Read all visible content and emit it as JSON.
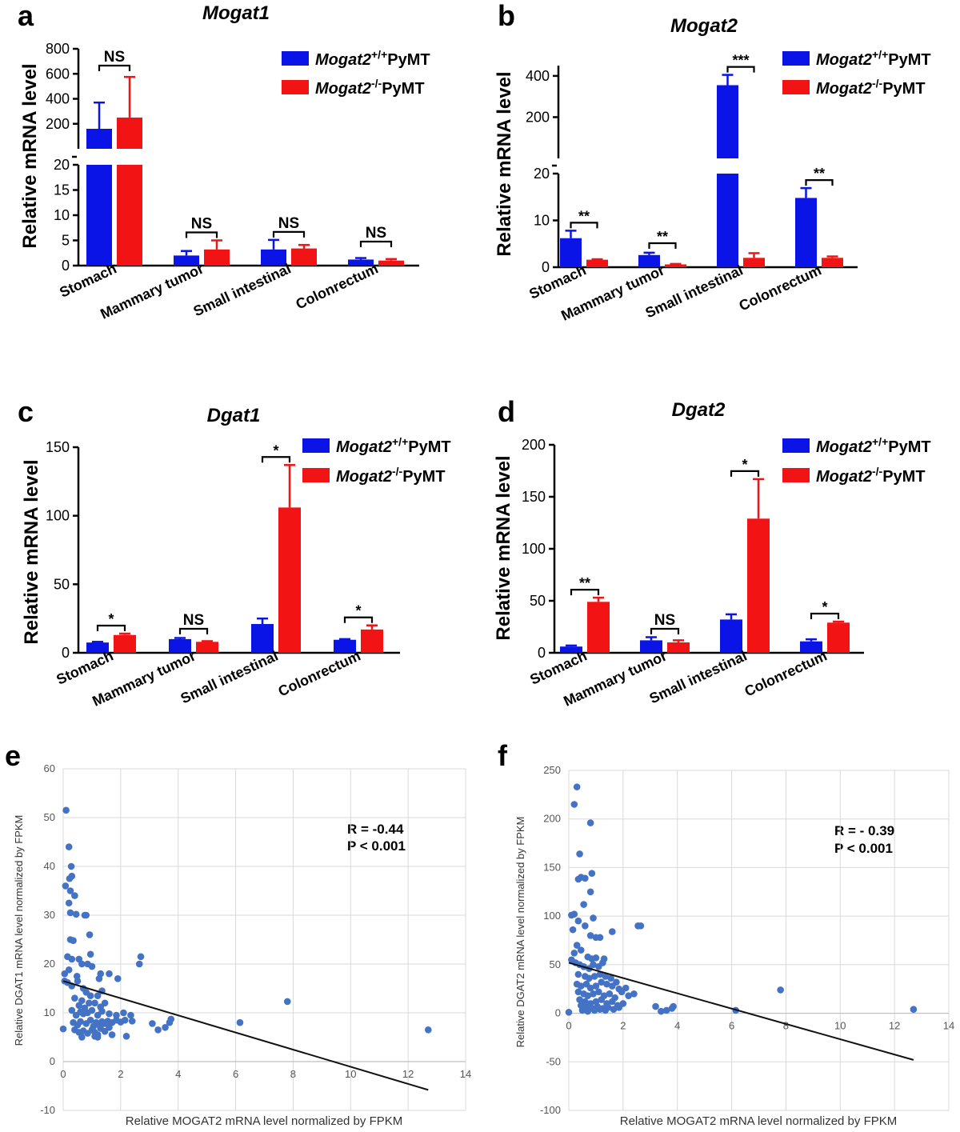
{
  "panels": {
    "a": "a",
    "b": "b",
    "c": "c",
    "d": "d",
    "e": "e",
    "f": "f"
  },
  "legend": {
    "wt_gene": "Mogat2",
    "wt_sup": "+/+",
    "wt_suffix": "PyMT",
    "ko_gene": "Mogat2",
    "ko_sup": "-/-",
    "ko_suffix": "PyMT"
  },
  "colors": {
    "wt": "#0a14e6",
    "ko": "#f21414",
    "scatter": "#4472c4",
    "grid": "#d9d9d9",
    "trend": "#111111"
  },
  "chart_data": [
    {
      "panel": "a",
      "type": "bar",
      "title": "Mogat1",
      "ylabel": "Relative mRNA level",
      "categories": [
        "Stomach",
        "Mammary tumor",
        "Small intestinal",
        "Colonrectum"
      ],
      "series": [
        {
          "name": "Mogat2+/+PyMT",
          "values": [
            160,
            2,
            3.2,
            1.2
          ],
          "errors": [
            210,
            0.9,
            1.9,
            0.3
          ]
        },
        {
          "name": "Mogat2-/-PyMT",
          "values": [
            250,
            3.2,
            3.4,
            1.0
          ],
          "errors": [
            325,
            1.8,
            0.7,
            0.3
          ]
        }
      ],
      "broken_axis": {
        "lower": [
          0,
          20
        ],
        "upper": [
          0,
          800
        ],
        "lower_ticks": [
          0,
          5,
          10,
          15,
          20
        ],
        "upper_ticks": [
          200,
          400,
          600,
          800
        ]
      },
      "significance": [
        "NS",
        "NS",
        "NS",
        "NS"
      ]
    },
    {
      "panel": "b",
      "type": "bar",
      "title": "Mogat2",
      "ylabel": "Relative mRNA level",
      "categories": [
        "Stomach",
        "Mammary tumor",
        "Small intestinal",
        "Colonrectum"
      ],
      "series": [
        {
          "name": "Mogat2+/+PyMT",
          "values": [
            6.2,
            2.6,
            355,
            14.8
          ],
          "errors": [
            1.6,
            0.5,
            50,
            2.1
          ]
        },
        {
          "name": "Mogat2-/-PyMT",
          "values": [
            1.6,
            0.6,
            2.0,
            2.0
          ],
          "errors": [
            0.1,
            0.1,
            1.0,
            0.3
          ]
        }
      ],
      "broken_axis": {
        "lower": [
          0,
          20
        ],
        "upper": [
          0,
          450
        ],
        "lower_ticks": [
          0,
          10,
          20
        ],
        "upper_ticks": [
          200,
          400
        ]
      },
      "significance": [
        "**",
        "**",
        "***",
        "**"
      ]
    },
    {
      "panel": "c",
      "type": "bar",
      "title": "Dgat1",
      "ylabel": "Relative mRNA level",
      "categories": [
        "Stomach",
        "Mammary tumor",
        "Small intestinal",
        "Colonrectum"
      ],
      "series": [
        {
          "name": "Mogat2+/+PyMT",
          "values": [
            7.5,
            10,
            21,
            9.5
          ],
          "errors": [
            0.5,
            0.8,
            4,
            0.5
          ]
        },
        {
          "name": "Mogat2-/-PyMT",
          "values": [
            13,
            8,
            106,
            17
          ],
          "errors": [
            1,
            0.5,
            31,
            3
          ]
        }
      ],
      "ylim": [
        0,
        150
      ],
      "yticks": [
        0,
        50,
        100,
        150
      ],
      "significance": [
        "*",
        "NS",
        "*",
        "*"
      ]
    },
    {
      "panel": "d",
      "type": "bar",
      "title": "Dgat2",
      "ylabel": "Relative mRNA level",
      "categories": [
        "Stomach",
        "Mammary tumor",
        "Small intestinal",
        "Colonrectum"
      ],
      "series": [
        {
          "name": "Mogat2+/+PyMT",
          "values": [
            6,
            12,
            32,
            11
          ],
          "errors": [
            1,
            3,
            5,
            2
          ]
        },
        {
          "name": "Mogat2-/-PyMT",
          "values": [
            49,
            10,
            129,
            29
          ],
          "errors": [
            4,
            2,
            38,
            1
          ]
        }
      ],
      "ylim": [
        0,
        200
      ],
      "yticks": [
        0,
        50,
        100,
        150,
        200
      ],
      "significance": [
        "**",
        "NS",
        "*",
        "*"
      ]
    },
    {
      "panel": "e",
      "type": "scatter",
      "xlabel": "Relative MOGAT2 mRNA level normalized by FPKM",
      "ylabel": "Relative DGAT1 mRNA level normalized by FPKM",
      "xlim": [
        0,
        14
      ],
      "ylim": [
        -10,
        60
      ],
      "xticks": [
        0,
        2,
        4,
        6,
        8,
        10,
        12,
        14
      ],
      "yticks": [
        -10,
        0,
        10,
        20,
        30,
        40,
        50,
        60
      ],
      "annotation": [
        "R = -0.44",
        "P < 0.001"
      ],
      "trendline": [
        [
          0,
          16.5
        ],
        [
          12.7,
          -5.8
        ]
      ],
      "points": [
        [
          0.1,
          51.5
        ],
        [
          0.2,
          44
        ],
        [
          0.28,
          40
        ],
        [
          0.22,
          37.5
        ],
        [
          0.3,
          38
        ],
        [
          0.08,
          36
        ],
        [
          0.25,
          35
        ],
        [
          0.4,
          34
        ],
        [
          0.2,
          32.5
        ],
        [
          0.25,
          30.5
        ],
        [
          0.45,
          30.2
        ],
        [
          0.75,
          30
        ],
        [
          0.8,
          30
        ],
        [
          0.25,
          25
        ],
        [
          0.35,
          24.8
        ],
        [
          0.92,
          26
        ],
        [
          0.15,
          21.5
        ],
        [
          0.3,
          21
        ],
        [
          0.55,
          21
        ],
        [
          0.95,
          22
        ],
        [
          0.05,
          18
        ],
        [
          0.2,
          18.8
        ],
        [
          0.48,
          17.5
        ],
        [
          0.65,
          20
        ],
        [
          0.85,
          20
        ],
        [
          1.0,
          19.5
        ],
        [
          1.3,
          18
        ],
        [
          1.6,
          18
        ],
        [
          1.9,
          17
        ],
        [
          0.05,
          16.5
        ],
        [
          0.15,
          16.2
        ],
        [
          0.3,
          15.5
        ],
        [
          0.5,
          16.5
        ],
        [
          0.7,
          15
        ],
        [
          0.8,
          14.2
        ],
        [
          0.95,
          13.5
        ],
        [
          1.2,
          13.5
        ],
        [
          1.25,
          17
        ],
        [
          1.35,
          14.5
        ],
        [
          0.4,
          13
        ],
        [
          0.55,
          11.5
        ],
        [
          0.65,
          12.5
        ],
        [
          0.75,
          11
        ],
        [
          0.9,
          12
        ],
        [
          1.1,
          12
        ],
        [
          1.3,
          11.2
        ],
        [
          1.45,
          12
        ],
        [
          0.3,
          10.5
        ],
        [
          0.45,
          9.5
        ],
        [
          0.6,
          10.2
        ],
        [
          0.7,
          9.8
        ],
        [
          0.85,
          10
        ],
        [
          1.0,
          10.5
        ],
        [
          1.2,
          9.5
        ],
        [
          1.35,
          10.3
        ],
        [
          1.6,
          9.8
        ],
        [
          1.85,
          9.5
        ],
        [
          2.1,
          10
        ],
        [
          2.35,
          9.5
        ],
        [
          0.35,
          8
        ],
        [
          0.5,
          7.5
        ],
        [
          0.6,
          8.2
        ],
        [
          0.8,
          7.8
        ],
        [
          0.95,
          8.5
        ],
        [
          1.05,
          7.2
        ],
        [
          1.15,
          8
        ],
        [
          1.25,
          7.5
        ],
        [
          1.35,
          8.2
        ],
        [
          1.45,
          7.8
        ],
        [
          1.55,
          8.3
        ],
        [
          1.7,
          8
        ],
        [
          1.85,
          8.5
        ],
        [
          2.0,
          8.1
        ],
        [
          2.15,
          8.5
        ],
        [
          2.4,
          8.3
        ],
        [
          0.4,
          6.5
        ],
        [
          0.55,
          6
        ],
        [
          0.7,
          6.3
        ],
        [
          0.85,
          5.8
        ],
        [
          1.0,
          6.5
        ],
        [
          1.1,
          6
        ],
        [
          1.2,
          5.5
        ],
        [
          1.3,
          6.8
        ],
        [
          1.45,
          6.2
        ],
        [
          1.6,
          7
        ],
        [
          0.65,
          5
        ],
        [
          1.1,
          5.2
        ],
        [
          1.2,
          5
        ],
        [
          2.2,
          5.2
        ],
        [
          1.7,
          5.5
        ],
        [
          2.65,
          20
        ],
        [
          2.7,
          21.5
        ],
        [
          3.1,
          7.8
        ],
        [
          3.3,
          6.5
        ],
        [
          3.55,
          7
        ],
        [
          3.7,
          8
        ],
        [
          3.75,
          8.7
        ],
        [
          6.15,
          8
        ],
        [
          7.8,
          12.3
        ],
        [
          12.7,
          6.5
        ],
        [
          0.0,
          6.7
        ]
      ]
    },
    {
      "panel": "f",
      "type": "scatter",
      "xlabel": "Relative MOGAT2 mRNA level normalized by FPKM",
      "ylabel": "Relative DGAT2 mRNA level normalized by FPKM",
      "xlim": [
        0,
        14
      ],
      "ylim": [
        -100,
        250
      ],
      "xticks": [
        0,
        2,
        4,
        6,
        8,
        10,
        12,
        14
      ],
      "yticks": [
        -100,
        -50,
        0,
        50,
        100,
        150,
        200,
        250
      ],
      "annotation": [
        "R = - 0.39",
        "P < 0.001"
      ],
      "trendline": [
        [
          0,
          52
        ],
        [
          12.7,
          -48
        ]
      ],
      "points": [
        [
          0.3,
          233
        ],
        [
          0.2,
          215
        ],
        [
          0.8,
          196
        ],
        [
          0.4,
          164
        ],
        [
          0.45,
          140
        ],
        [
          0.35,
          138
        ],
        [
          0.6,
          139
        ],
        [
          0.85,
          144
        ],
        [
          0.8,
          125
        ],
        [
          0.55,
          112
        ],
        [
          0.2,
          102
        ],
        [
          0.1,
          101
        ],
        [
          0.35,
          95
        ],
        [
          0.9,
          98
        ],
        [
          0.15,
          86
        ],
        [
          0.6,
          90
        ],
        [
          0.8,
          80
        ],
        [
          1.0,
          78
        ],
        [
          1.15,
          78
        ],
        [
          1.6,
          84
        ],
        [
          2.55,
          90
        ],
        [
          2.65,
          90
        ],
        [
          0.3,
          70
        ],
        [
          0.45,
          65
        ],
        [
          0.2,
          62
        ],
        [
          0.7,
          58
        ],
        [
          0.85,
          56
        ],
        [
          1.0,
          57
        ],
        [
          1.3,
          56
        ],
        [
          0.1,
          55
        ],
        [
          0.25,
          52
        ],
        [
          0.4,
          50
        ],
        [
          0.55,
          48
        ],
        [
          0.75,
          46
        ],
        [
          0.9,
          50
        ],
        [
          1.1,
          48
        ],
        [
          1.25,
          52
        ],
        [
          0.35,
          40
        ],
        [
          0.6,
          38
        ],
        [
          0.75,
          36
        ],
        [
          0.95,
          38
        ],
        [
          1.15,
          40
        ],
        [
          1.35,
          38
        ],
        [
          1.55,
          36
        ],
        [
          1.75,
          32
        ],
        [
          0.3,
          30
        ],
        [
          0.45,
          28
        ],
        [
          0.65,
          30
        ],
        [
          0.8,
          26
        ],
        [
          1.0,
          28
        ],
        [
          1.2,
          32
        ],
        [
          1.4,
          30
        ],
        [
          1.6,
          28
        ],
        [
          1.85,
          25
        ],
        [
          2.1,
          26
        ],
        [
          2.4,
          20
        ],
        [
          0.35,
          22
        ],
        [
          0.55,
          20
        ],
        [
          0.7,
          18
        ],
        [
          0.9,
          20
        ],
        [
          1.1,
          22
        ],
        [
          1.3,
          18
        ],
        [
          1.5,
          20
        ],
        [
          1.7,
          16
        ],
        [
          1.95,
          22
        ],
        [
          2.2,
          18
        ],
        [
          0.4,
          14
        ],
        [
          0.6,
          12
        ],
        [
          0.8,
          10
        ],
        [
          1.0,
          12
        ],
        [
          1.2,
          14
        ],
        [
          1.4,
          10
        ],
        [
          1.6,
          12
        ],
        [
          1.8,
          8
        ],
        [
          2.0,
          10
        ],
        [
          0.45,
          8
        ],
        [
          0.65,
          6
        ],
        [
          0.85,
          5
        ],
        [
          1.05,
          7
        ],
        [
          1.25,
          5
        ],
        [
          1.45,
          6
        ],
        [
          1.65,
          4
        ],
        [
          1.85,
          6
        ],
        [
          0.5,
          3
        ],
        [
          0.7,
          2
        ],
        [
          0.95,
          3
        ],
        [
          1.15,
          4
        ],
        [
          1.35,
          3
        ],
        [
          0.0,
          1
        ],
        [
          3.2,
          7
        ],
        [
          3.4,
          2
        ],
        [
          3.6,
          3
        ],
        [
          3.8,
          5
        ],
        [
          3.85,
          7
        ],
        [
          6.15,
          3
        ],
        [
          7.8,
          24
        ],
        [
          12.7,
          4
        ]
      ]
    }
  ]
}
